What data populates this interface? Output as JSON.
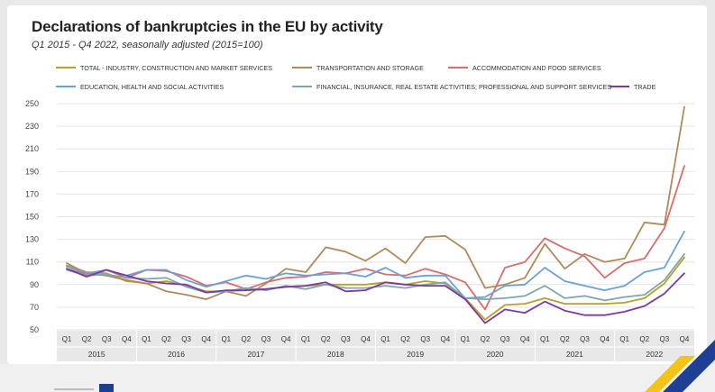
{
  "title": "Declarations of bankruptcies in the EU by activity",
  "subtitle": "Q1 2015 - Q4 2022, seasonally adjusted  (2015=100)",
  "colors": {
    "background": "#ffffff",
    "gridline": "#e3e3e3",
    "axis_band": "#e8e8e8",
    "deco_yellow": "#f2c319",
    "deco_blue": "#1e3f93"
  },
  "chart_data": {
    "type": "line",
    "title": "Declarations of bankruptcies in the EU by activity",
    "subtitle": "Q1 2015 - Q4 2022, seasonally adjusted  (2015=100)",
    "xlabel": "",
    "ylabel": "",
    "ylim": [
      50,
      250
    ],
    "yticks": [
      50,
      70,
      90,
      110,
      130,
      150,
      170,
      190,
      210,
      230,
      250
    ],
    "grid": true,
    "legend_position": "top",
    "quarter_labels": [
      "Q1",
      "Q2",
      "Q3",
      "Q4",
      "Q1",
      "Q2",
      "Q3",
      "Q4",
      "Q1",
      "Q2",
      "Q3",
      "Q4",
      "Q1",
      "Q2",
      "Q3",
      "Q4",
      "Q1",
      "Q2",
      "Q3",
      "Q4",
      "Q1",
      "Q2",
      "Q3",
      "Q4",
      "Q1",
      "Q2",
      "Q3",
      "Q4",
      "Q1",
      "Q2",
      "Q3",
      "Q4"
    ],
    "years": [
      "2015",
      "2016",
      "2017",
      "2018",
      "2019",
      "2020",
      "2021",
      "2022"
    ],
    "series": [
      {
        "name": "TOTAL - INDUSTRY, CONSTRUCTION AND MARKET SERVICES",
        "color": "#b8a02a",
        "values": [
          107,
          101,
          100,
          93,
          91,
          93,
          89,
          84,
          84,
          85,
          86,
          88,
          89,
          90,
          90,
          90,
          92,
          90,
          93,
          91,
          78,
          59,
          72,
          73,
          78,
          73,
          73,
          73,
          74,
          78,
          91,
          114
        ]
      },
      {
        "name": "TRANSPORTATION AND STORAGE",
        "color": "#b08a5a",
        "values": [
          109,
          100,
          98,
          94,
          91,
          84,
          81,
          77,
          84,
          80,
          91,
          104,
          101,
          123,
          119,
          111,
          122,
          109,
          132,
          133,
          121,
          87,
          90,
          96,
          126,
          104,
          117,
          110,
          113,
          145,
          143,
          247
        ]
      },
      {
        "name": "ACCOMMODATION AND FOOD SERVICES",
        "color": "#d96c6c",
        "values": [
          104,
          99,
          103,
          96,
          103,
          102,
          97,
          89,
          92,
          86,
          92,
          96,
          97,
          101,
          100,
          104,
          99,
          98,
          104,
          99,
          92,
          68,
          105,
          110,
          131,
          122,
          115,
          96,
          109,
          113,
          140,
          195
        ]
      },
      {
        "name": "EDUCATION,  HEALTH AND SOCIAL ACTIVITIES",
        "color": "#6aa2d6",
        "values": [
          106,
          100,
          103,
          98,
          103,
          103,
          94,
          88,
          93,
          98,
          95,
          100,
          98,
          99,
          100,
          97,
          105,
          96,
          98,
          98,
          78,
          79,
          89,
          90,
          105,
          93,
          89,
          85,
          89,
          101,
          105,
          137
        ]
      },
      {
        "name": "FINANCIAL, INSURANCE, REAL ESTATE ACTIVITIES; PROFESSIONAL AND SUPPORT SERVICES",
        "color": "#7fa7a7",
        "values": [
          103,
          98,
          99,
          96,
          95,
          96,
          88,
          83,
          84,
          87,
          85,
          89,
          86,
          90,
          87,
          87,
          89,
          87,
          90,
          92,
          78,
          77,
          78,
          80,
          89,
          78,
          80,
          76,
          79,
          81,
          94,
          117
        ]
      },
      {
        "name": "TRADE",
        "color": "#7a3aa6",
        "values": [
          104,
          97,
          103,
          98,
          93,
          91,
          90,
          83,
          85,
          85,
          86,
          88,
          89,
          92,
          84,
          85,
          92,
          90,
          89,
          89,
          77,
          56,
          68,
          65,
          75,
          67,
          63,
          63,
          66,
          71,
          82,
          100
        ]
      }
    ]
  }
}
